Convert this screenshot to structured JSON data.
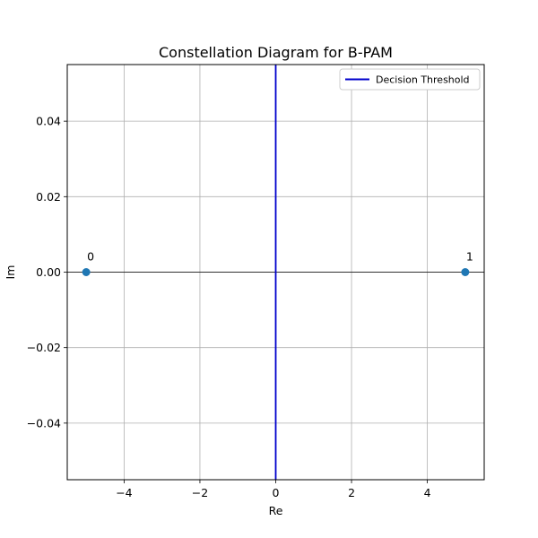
{
  "chart_data": {
    "type": "scatter",
    "title": "Constellation Diagram for B-PAM",
    "xlabel": "Re",
    "ylabel": "Im",
    "xlim": [
      -5.5,
      5.5
    ],
    "ylim": [
      -0.055,
      0.055
    ],
    "xticks": [
      -4,
      -2,
      0,
      2,
      4
    ],
    "xtick_labels": [
      "−4",
      "−2",
      "0",
      "2",
      "4"
    ],
    "yticks": [
      -0.04,
      -0.02,
      0.0,
      0.02,
      0.04
    ],
    "ytick_labels": [
      "−0.04",
      "−0.02",
      "0.00",
      "0.02",
      "0.04"
    ],
    "grid": true,
    "points": [
      {
        "x": -5,
        "y": 0,
        "label": "0"
      },
      {
        "x": 5,
        "y": 0,
        "label": "1"
      }
    ],
    "threshold": {
      "name": "Decision Threshold",
      "x": 0
    },
    "legend_position": "upper-right",
    "colors": {
      "points": "#1f77b4",
      "threshold": "#0000cc",
      "grid": "#b0b0b0",
      "axis_line": "#000000"
    }
  }
}
